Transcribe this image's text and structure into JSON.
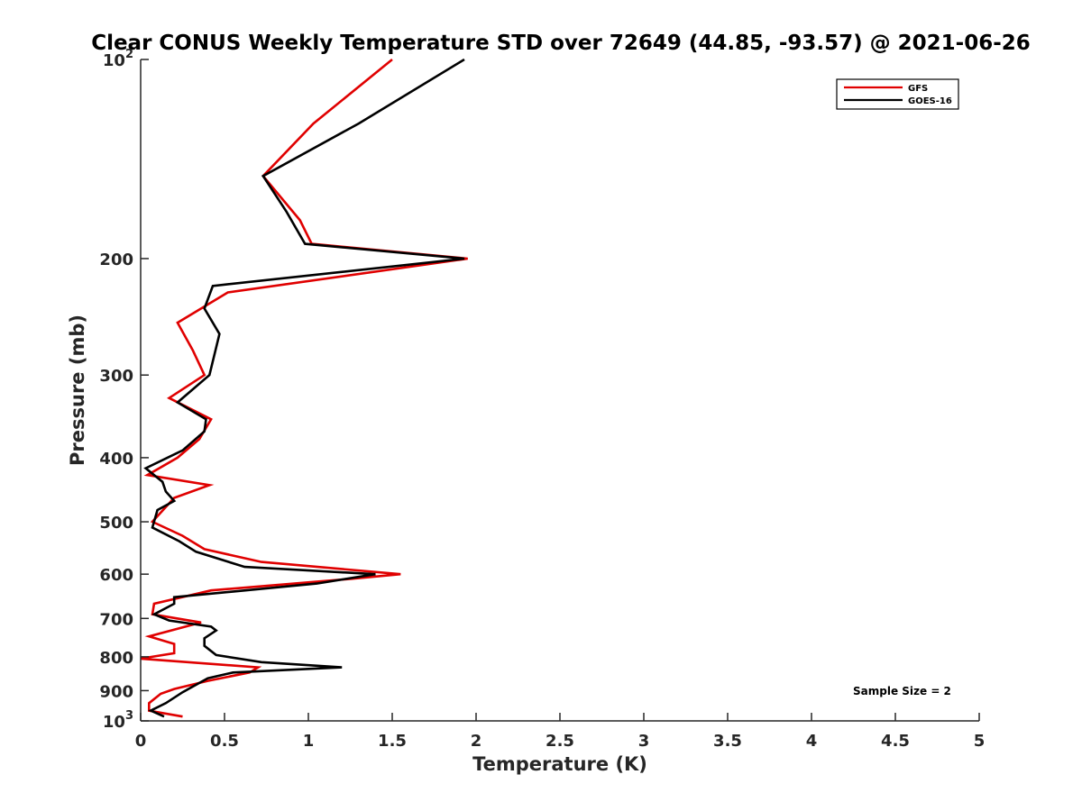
{
  "chart_data": {
    "type": "line",
    "title": "Clear CONUS Weekly Temperature STD over 72649 (44.85, -93.57) @ 2021-06-26",
    "xlabel": "Temperature (K)",
    "ylabel": "Pressure (mb)",
    "xlim": [
      0,
      5
    ],
    "ylim": [
      100,
      1000
    ],
    "y_scale": "log",
    "y_reversed": true,
    "grid": false,
    "legend_position": "top-right",
    "x_ticks": [
      {
        "value": 0,
        "label": "0"
      },
      {
        "value": 0.5,
        "label": "0.5"
      },
      {
        "value": 1,
        "label": "1"
      },
      {
        "value": 1.5,
        "label": "1.5"
      },
      {
        "value": 2,
        "label": "2"
      },
      {
        "value": 2.5,
        "label": "2.5"
      },
      {
        "value": 3,
        "label": "3"
      },
      {
        "value": 3.5,
        "label": "3.5"
      },
      {
        "value": 4,
        "label": "4"
      },
      {
        "value": 4.5,
        "label": "4.5"
      },
      {
        "value": 5,
        "label": "5"
      }
    ],
    "y_ticks": [
      {
        "value": 100,
        "label": "10",
        "sup": "2"
      },
      {
        "value": 200,
        "label": "200",
        "sup": ""
      },
      {
        "value": 300,
        "label": "300",
        "sup": ""
      },
      {
        "value": 400,
        "label": "400",
        "sup": ""
      },
      {
        "value": 500,
        "label": "500",
        "sup": ""
      },
      {
        "value": 600,
        "label": "600",
        "sup": ""
      },
      {
        "value": 700,
        "label": "700",
        "sup": ""
      },
      {
        "value": 800,
        "label": "800",
        "sup": ""
      },
      {
        "value": 900,
        "label": "900",
        "sup": ""
      },
      {
        "value": 1000,
        "label": "10",
        "sup": "3"
      }
    ],
    "series": [
      {
        "name": "GFS",
        "color": "#e00000",
        "points": [
          [
            1.5,
            100
          ],
          [
            1.03,
            125
          ],
          [
            0.73,
            150
          ],
          [
            0.95,
            175
          ],
          [
            1.02,
            190
          ],
          [
            1.95,
            200
          ],
          [
            0.52,
            225
          ],
          [
            0.22,
            250
          ],
          [
            0.31,
            275
          ],
          [
            0.38,
            300
          ],
          [
            0.17,
            325
          ],
          [
            0.42,
            350
          ],
          [
            0.35,
            375
          ],
          [
            0.22,
            400
          ],
          [
            0.04,
            425
          ],
          [
            0.41,
            440
          ],
          [
            0.2,
            460
          ],
          [
            0.07,
            500
          ],
          [
            0.25,
            525
          ],
          [
            0.38,
            550
          ],
          [
            0.72,
            575
          ],
          [
            1.55,
            600
          ],
          [
            1.25,
            610
          ],
          [
            0.42,
            635
          ],
          [
            0.08,
            665
          ],
          [
            0.07,
            690
          ],
          [
            0.36,
            710
          ],
          [
            0.05,
            745
          ],
          [
            0.2,
            765
          ],
          [
            0.2,
            790
          ],
          [
            0.0,
            805
          ],
          [
            0.7,
            830
          ],
          [
            0.65,
            845
          ],
          [
            0.4,
            870
          ],
          [
            0.2,
            895
          ],
          [
            0.12,
            910
          ],
          [
            0.05,
            940
          ],
          [
            0.05,
            965
          ],
          [
            0.25,
            985
          ]
        ]
      },
      {
        "name": "GOES-16",
        "color": "#000000",
        "points": [
          [
            1.93,
            100
          ],
          [
            1.3,
            125
          ],
          [
            0.73,
            150
          ],
          [
            0.87,
            170
          ],
          [
            0.98,
            190
          ],
          [
            1.93,
            200
          ],
          [
            0.43,
            220
          ],
          [
            0.38,
            238
          ],
          [
            0.47,
            260
          ],
          [
            0.41,
            300
          ],
          [
            0.22,
            330
          ],
          [
            0.39,
            350
          ],
          [
            0.38,
            365
          ],
          [
            0.25,
            390
          ],
          [
            0.03,
            415
          ],
          [
            0.13,
            435
          ],
          [
            0.15,
            450
          ],
          [
            0.2,
            465
          ],
          [
            0.1,
            480
          ],
          [
            0.07,
            510
          ],
          [
            0.23,
            535
          ],
          [
            0.33,
            555
          ],
          [
            0.62,
            585
          ],
          [
            1.4,
            600
          ],
          [
            1.05,
            620
          ],
          [
            0.2,
            650
          ],
          [
            0.2,
            665
          ],
          [
            0.08,
            690
          ],
          [
            0.17,
            705
          ],
          [
            0.42,
            720
          ],
          [
            0.45,
            730
          ],
          [
            0.38,
            750
          ],
          [
            0.38,
            770
          ],
          [
            0.45,
            795
          ],
          [
            0.72,
            815
          ],
          [
            1.2,
            830
          ],
          [
            0.55,
            845
          ],
          [
            0.4,
            862
          ],
          [
            0.25,
            905
          ],
          [
            0.15,
            940
          ],
          [
            0.06,
            965
          ],
          [
            0.14,
            985
          ]
        ]
      }
    ],
    "annotations": [
      {
        "text": "Sample Size = 2",
        "position": "bottom-right"
      }
    ]
  }
}
